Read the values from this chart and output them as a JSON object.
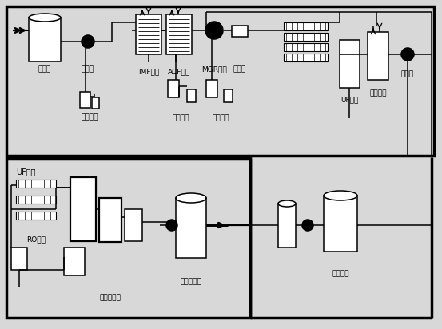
{
  "bg": "#d8d8d8",
  "lc": "#000000",
  "bc": "#ffffff",
  "tlw": 2.5,
  "nlw": 1.1,
  "labels": {
    "yuan_shui_xiang": "原水箱",
    "yuan_shui_beng": "原水泵",
    "ruan_hua": "软化系统",
    "imf": "IMF系统",
    "acf": "ACF系统",
    "yang_hua": "氧化系统",
    "zu_gou": "阻垢系统",
    "mgr": "MGR系统",
    "gao_ya1": "高压泵",
    "uf1": "UF系统",
    "zhen_ya": "稳压系统",
    "gao_ya2": "高压泵",
    "uf2": "UF系统",
    "ro": "RO系统",
    "qiang_hua": "强氧化系统",
    "chun_shui": "纯水箱系统",
    "qing_xi": "清洗系统"
  }
}
